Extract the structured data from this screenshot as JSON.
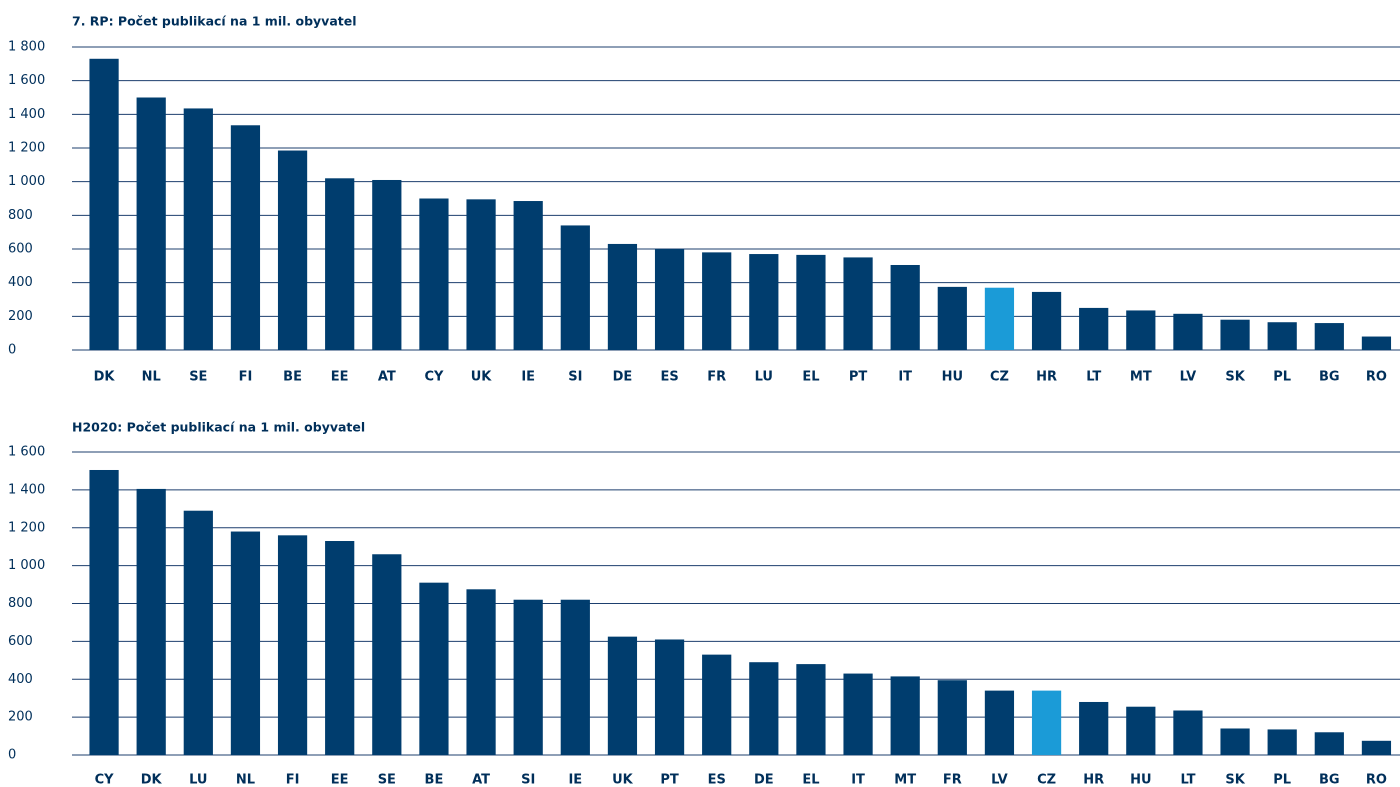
{
  "chart_data": [
    {
      "type": "bar",
      "title": "7. RP: Počet publikací na 1 mil. obyvatel",
      "categories": [
        "DK",
        "NL",
        "SE",
        "FI",
        "BE",
        "EE",
        "AT",
        "CY",
        "UK",
        "IE",
        "SI",
        "DE",
        "ES",
        "FR",
        "LU",
        "EL",
        "PT",
        "IT",
        "HU",
        "CZ",
        "HR",
        "LT",
        "MT",
        "LV",
        "SK",
        "PL",
        "BG",
        "RO"
      ],
      "values": [
        1730,
        1500,
        1435,
        1335,
        1185,
        1020,
        1010,
        900,
        895,
        885,
        740,
        630,
        600,
        580,
        570,
        565,
        550,
        505,
        375,
        370,
        345,
        250,
        235,
        215,
        180,
        165,
        160,
        80
      ],
      "colors": [
        "#003d6e",
        "#003d6e",
        "#003d6e",
        "#003d6e",
        "#003d6e",
        "#003d6e",
        "#003d6e",
        "#003d6e",
        "#003d6e",
        "#003d6e",
        "#003d6e",
        "#003d6e",
        "#003d6e",
        "#003d6e",
        "#003d6e",
        "#003d6e",
        "#003d6e",
        "#003d6e",
        "#003d6e",
        "#1b9bd7",
        "#003d6e",
        "#003d6e",
        "#003d6e",
        "#003d6e",
        "#003d6e",
        "#003d6e",
        "#003d6e",
        "#003d6e"
      ],
      "ylim": [
        0,
        1800
      ],
      "yticks": [
        0,
        200,
        400,
        600,
        800,
        {
          "value": 1000,
          "label": "1 000"
        },
        {
          "value": 1200,
          "label": "1 200"
        },
        {
          "value": 1400,
          "label": "1 400"
        },
        {
          "value": 1600,
          "label": "1 600"
        },
        {
          "value": 1800,
          "label": "1 800"
        }
      ],
      "grid": true
    },
    {
      "type": "bar",
      "title": "H2020: Počet publikací na 1 mil. obyvatel",
      "categories": [
        "CY",
        "DK",
        "LU",
        "NL",
        "FI",
        "EE",
        "SE",
        "BE",
        "AT",
        "SI",
        "IE",
        "UK",
        "PT",
        "ES",
        "DE",
        "EL",
        "IT",
        "MT",
        "FR",
        "LV",
        "CZ",
        "HR",
        "HU",
        "LT",
        "SK",
        "PL",
        "BG",
        "RO"
      ],
      "values": [
        1505,
        1405,
        1290,
        1180,
        1160,
        1130,
        1060,
        910,
        875,
        820,
        820,
        625,
        610,
        530,
        490,
        480,
        430,
        415,
        395,
        340,
        340,
        280,
        255,
        235,
        140,
        135,
        120,
        75
      ],
      "colors": [
        "#003d6e",
        "#003d6e",
        "#003d6e",
        "#003d6e",
        "#003d6e",
        "#003d6e",
        "#003d6e",
        "#003d6e",
        "#003d6e",
        "#003d6e",
        "#003d6e",
        "#003d6e",
        "#003d6e",
        "#003d6e",
        "#003d6e",
        "#003d6e",
        "#003d6e",
        "#003d6e",
        "#003d6e",
        "#003d6e",
        "#1b9bd7",
        "#003d6e",
        "#003d6e",
        "#003d6e",
        "#003d6e",
        "#003d6e",
        "#003d6e",
        "#003d6e"
      ],
      "ylim": [
        0,
        1600
      ],
      "yticks": [
        0,
        200,
        400,
        600,
        800,
        {
          "value": 1000,
          "label": "1 000"
        },
        {
          "value": 1200,
          "label": "1 200"
        },
        {
          "value": 1400,
          "label": "1 400"
        },
        {
          "value": 1600,
          "label": "1 600"
        }
      ],
      "grid": true
    }
  ]
}
